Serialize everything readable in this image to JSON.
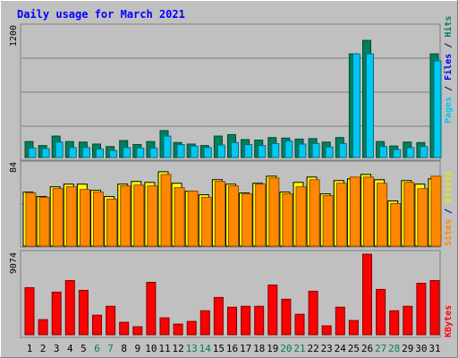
{
  "chart_data": [
    {
      "type": "bar",
      "title": "Daily usage for March 2021",
      "ymax_label": "1200",
      "ylim": [
        0,
        1320
      ],
      "categories": [
        "1",
        "2",
        "3",
        "4",
        "5",
        "6",
        "7",
        "8",
        "9",
        "10",
        "11",
        "12",
        "13",
        "14",
        "15",
        "16",
        "17",
        "18",
        "19",
        "20",
        "21",
        "22",
        "23",
        "24",
        "25",
        "26",
        "27",
        "28",
        "29",
        "30",
        "31"
      ],
      "weekend_days": [
        "6",
        "7",
        "13",
        "14",
        "20",
        "21",
        "27",
        "28"
      ],
      "series": [
        {
          "name": "Hits",
          "color": "#00805c",
          "values": [
            160,
            120,
            215,
            160,
            155,
            135,
            110,
            170,
            130,
            160,
            270,
            150,
            135,
            120,
            215,
            230,
            180,
            175,
            200,
            195,
            185,
            190,
            155,
            200,
            1040,
            1175,
            160,
            115,
            155,
            150,
            1040
          ]
        },
        {
          "name": "Pages",
          "color": "#00c8f0",
          "values": [
            95,
            90,
            155,
            100,
            100,
            85,
            70,
            100,
            95,
            95,
            215,
            130,
            115,
            100,
            125,
            150,
            130,
            120,
            140,
            165,
            135,
            140,
            105,
            140,
            1040,
            1040,
            110,
            80,
            100,
            110,
            970
          ]
        }
      ],
      "axis_labels": [
        {
          "text": "Pages",
          "color": "#00c8f0"
        },
        {
          "text": " / ",
          "color": "#000080"
        },
        {
          "text": "Files",
          "color": "#0000ff"
        },
        {
          "text": " / ",
          "color": "#000080"
        },
        {
          "text": "Hits",
          "color": "#00805c"
        }
      ]
    },
    {
      "type": "bar",
      "ymax_label": "84",
      "ylim": [
        0,
        93
      ],
      "categories": [
        "1",
        "2",
        "3",
        "4",
        "5",
        "6",
        "7",
        "8",
        "9",
        "10",
        "11",
        "12",
        "13",
        "14",
        "15",
        "16",
        "17",
        "18",
        "19",
        "20",
        "21",
        "22",
        "23",
        "24",
        "25",
        "26",
        "27",
        "28",
        "29",
        "30",
        "31"
      ],
      "series": [
        {
          "name": "Visits",
          "color": "#ffff00",
          "values": [
            61,
            56,
            67,
            70,
            70,
            63,
            56,
            70,
            73,
            72,
            84,
            71,
            62,
            58,
            75,
            70,
            60,
            71,
            79,
            61,
            72,
            78,
            59,
            74,
            76,
            81,
            75,
            51,
            74,
            70,
            76
          ]
        },
        {
          "name": "Sites",
          "color": "#ff8800",
          "values": [
            60,
            55,
            65,
            67,
            64,
            61,
            53,
            68,
            69,
            68,
            81,
            66,
            62,
            55,
            73,
            68,
            59,
            70,
            77,
            59,
            67,
            75,
            57,
            71,
            78,
            78,
            71,
            48,
            72,
            65,
            79
          ]
        }
      ],
      "axis_labels": [
        {
          "text": "Sites",
          "color": "#ff8800"
        },
        {
          "text": " / ",
          "color": "#000080"
        },
        {
          "text": "Visits",
          "color": "#e8e800"
        }
      ]
    },
    {
      "type": "bar",
      "ymax_label": "9074",
      "ylim": [
        0,
        9074
      ],
      "categories": [
        "1",
        "2",
        "3",
        "4",
        "5",
        "6",
        "7",
        "8",
        "9",
        "10",
        "11",
        "12",
        "13",
        "14",
        "15",
        "16",
        "17",
        "18",
        "19",
        "20",
        "21",
        "22",
        "23",
        "24",
        "25",
        "26",
        "27",
        "28",
        "29",
        "30",
        "31"
      ],
      "series": [
        {
          "name": "KBytes",
          "color": "#ff0000",
          "values": [
            5300,
            1700,
            4800,
            6100,
            5000,
            2200,
            3200,
            1400,
            900,
            5900,
            1900,
            1200,
            1500,
            2700,
            4200,
            3100,
            3200,
            3200,
            5600,
            4000,
            2300,
            4900,
            1000,
            3100,
            1600,
            9074,
            5100,
            2700,
            3200,
            5800,
            6100
          ]
        }
      ],
      "axis_labels": [
        {
          "text": "KBytes",
          "color": "#ff0000"
        }
      ]
    }
  ]
}
